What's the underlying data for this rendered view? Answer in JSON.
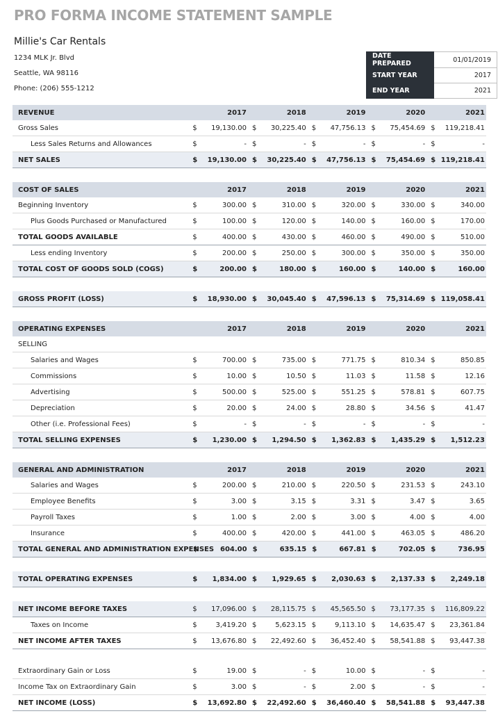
{
  "title": "PRO FORMA INCOME STATEMENT SAMPLE",
  "company": {
    "name": "Millie's Car Rentals",
    "address": "1234 MLK Jr. Blvd",
    "city": "Seattle, WA 98116",
    "phone": "Phone: (206) 555-1212"
  },
  "info": [
    {
      "label": "DATE PREPARED",
      "value": "01/01/2019"
    },
    {
      "label": "START YEAR",
      "value": "2017"
    },
    {
      "label": "END YEAR",
      "value": "2021"
    }
  ],
  "currency": "$",
  "years": [
    "2017",
    "2018",
    "2019",
    "2020",
    "2021"
  ],
  "sections": [
    {
      "header": "REVENUE",
      "rows": [
        {
          "label": "Gross Sales",
          "style": "plain",
          "values": [
            "19,130.00",
            "30,225.40",
            "47,756.13",
            "75,454.69",
            "119,218.41"
          ]
        },
        {
          "label": "Less Sales Returns and Allowances",
          "style": "indent",
          "values": [
            "-",
            "-",
            "-",
            "-",
            "-"
          ]
        },
        {
          "label": "NET SALES",
          "style": "total",
          "values": [
            "19,130.00",
            "30,225.40",
            "47,756.13",
            "75,454.69",
            "119,218.41"
          ]
        }
      ]
    },
    {
      "header": "COST OF SALES",
      "rows": [
        {
          "label": "Beginning Inventory",
          "style": "plain",
          "values": [
            "300.00",
            "310.00",
            "320.00",
            "330.00",
            "340.00"
          ]
        },
        {
          "label": "Plus Goods Purchased or Manufactured",
          "style": "indent",
          "values": [
            "100.00",
            "120.00",
            "140.00",
            "160.00",
            "170.00"
          ]
        },
        {
          "label": "TOTAL GOODS AVAILABLE",
          "style": "subtotal",
          "values": [
            "400.00",
            "430.00",
            "460.00",
            "490.00",
            "510.00"
          ]
        },
        {
          "label": "Less ending Inventory",
          "style": "indent",
          "values": [
            "200.00",
            "250.00",
            "300.00",
            "350.00",
            "350.00"
          ]
        },
        {
          "label": "TOTAL COST OF GOODS SOLD (COGS)",
          "style": "total",
          "values": [
            "200.00",
            "180.00",
            "160.00",
            "140.00",
            "160.00"
          ]
        }
      ]
    },
    {
      "rows": [
        {
          "label": "GROSS PROFIT (LOSS)",
          "style": "total",
          "values": [
            "18,930.00",
            "30,045.40",
            "47,596.13",
            "75,314.69",
            "119,058.41"
          ]
        }
      ]
    },
    {
      "header": "OPERATING EXPENSES",
      "rows": [
        {
          "label": "SELLING",
          "style": "plain"
        },
        {
          "label": "Salaries and Wages",
          "style": "indent",
          "values": [
            "700.00",
            "735.00",
            "771.75",
            "810.34",
            "850.85"
          ]
        },
        {
          "label": "Commissions",
          "style": "indent",
          "values": [
            "10.00",
            "10.50",
            "11.03",
            "11.58",
            "12.16"
          ]
        },
        {
          "label": "Advertising",
          "style": "indent",
          "values": [
            "500.00",
            "525.00",
            "551.25",
            "578.81",
            "607.75"
          ]
        },
        {
          "label": "Depreciation",
          "style": "indent",
          "values": [
            "20.00",
            "24.00",
            "28.80",
            "34.56",
            "41.47"
          ]
        },
        {
          "label": "Other  (i.e. Professional Fees)",
          "style": "indent",
          "values": [
            "-",
            "-",
            "-",
            "-",
            "-"
          ]
        },
        {
          "label": "TOTAL SELLING EXPENSES",
          "style": "total",
          "values": [
            "1,230.00",
            "1,294.50",
            "1,362.83",
            "1,435.29",
            "1,512.23"
          ]
        }
      ]
    },
    {
      "header": "GENERAL AND ADMINISTRATION",
      "rows": [
        {
          "label": "Salaries and Wages",
          "style": "indent",
          "values": [
            "200.00",
            "210.00",
            "220.50",
            "231.53",
            "243.10"
          ]
        },
        {
          "label": "Employee Benefits",
          "style": "indent",
          "values": [
            "3.00",
            "3.15",
            "3.31",
            "3.47",
            "3.65"
          ]
        },
        {
          "label": "Payroll Taxes",
          "style": "indent",
          "values": [
            "1.00",
            "2.00",
            "3.00",
            "4.00",
            "4.00"
          ]
        },
        {
          "label": "Insurance",
          "style": "indent",
          "values": [
            "400.00",
            "420.00",
            "441.00",
            "463.05",
            "486.20"
          ]
        },
        {
          "label": "TOTAL GENERAL AND ADMINISTRATION EXPENSES",
          "style": "total",
          "values": [
            "604.00",
            "635.15",
            "667.81",
            "702.05",
            "736.95"
          ]
        }
      ]
    },
    {
      "rows": [
        {
          "label": "TOTAL OPERATING EXPENSES",
          "style": "total",
          "values": [
            "1,834.00",
            "1,929.65",
            "2,030.63",
            "2,137.33",
            "2,249.18"
          ]
        }
      ]
    },
    {
      "rows": [
        {
          "label": "NET INCOME BEFORE TAXES",
          "style": "lead",
          "values": [
            "17,096.00",
            "28,115.75",
            "45,565.50",
            "73,177.35",
            "116,809.22"
          ]
        },
        {
          "label": "Taxes on Income",
          "style": "indent",
          "values": [
            "3,419.20",
            "5,623.15",
            "9,113.10",
            "14,635.47",
            "23,361.84"
          ]
        },
        {
          "label": "NET INCOME AFTER TAXES",
          "style": "subtotal",
          "values": [
            "13,676.80",
            "22,492.60",
            "36,452.40",
            "58,541.88",
            "93,447.38"
          ]
        }
      ]
    },
    {
      "rows": [
        {
          "label": "Extraordinary Gain or Loss",
          "style": "plain",
          "values": [
            "19.00",
            "-",
            "10.00",
            "-",
            "-"
          ]
        },
        {
          "label": "Income Tax on Extraordinary Gain",
          "style": "plain",
          "values": [
            "3.00",
            "-",
            "2.00",
            "-",
            "-"
          ]
        },
        {
          "label": "NET INCOME (LOSS)",
          "style": "final",
          "values": [
            "13,692.80",
            "22,492.60",
            "36,460.40",
            "58,541.88",
            "93,447.38"
          ]
        }
      ]
    }
  ]
}
